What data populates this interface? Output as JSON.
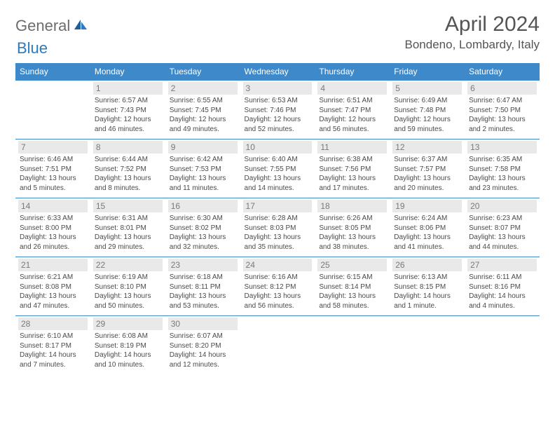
{
  "brand": {
    "part1": "General",
    "part2": "Blue"
  },
  "title": "April 2024",
  "location": "Bondeno, Lombardy, Italy",
  "colors": {
    "header_bg": "#3d89c9",
    "header_fg": "#ffffff",
    "daynum_bg": "#e9e9e9",
    "daynum_fg": "#7a7a7a",
    "border": "#3d89c9",
    "text": "#4a4a4a",
    "title": "#555555",
    "logo_gray": "#6d6d6d",
    "logo_blue": "#2a7bbf"
  },
  "day_headers": [
    "Sunday",
    "Monday",
    "Tuesday",
    "Wednesday",
    "Thursday",
    "Friday",
    "Saturday"
  ],
  "weeks": [
    [
      null,
      {
        "n": "1",
        "sr": "Sunrise: 6:57 AM",
        "ss": "Sunset: 7:43 PM",
        "dl": "Daylight: 12 hours and 46 minutes."
      },
      {
        "n": "2",
        "sr": "Sunrise: 6:55 AM",
        "ss": "Sunset: 7:45 PM",
        "dl": "Daylight: 12 hours and 49 minutes."
      },
      {
        "n": "3",
        "sr": "Sunrise: 6:53 AM",
        "ss": "Sunset: 7:46 PM",
        "dl": "Daylight: 12 hours and 52 minutes."
      },
      {
        "n": "4",
        "sr": "Sunrise: 6:51 AM",
        "ss": "Sunset: 7:47 PM",
        "dl": "Daylight: 12 hours and 56 minutes."
      },
      {
        "n": "5",
        "sr": "Sunrise: 6:49 AM",
        "ss": "Sunset: 7:48 PM",
        "dl": "Daylight: 12 hours and 59 minutes."
      },
      {
        "n": "6",
        "sr": "Sunrise: 6:47 AM",
        "ss": "Sunset: 7:50 PM",
        "dl": "Daylight: 13 hours and 2 minutes."
      }
    ],
    [
      {
        "n": "7",
        "sr": "Sunrise: 6:46 AM",
        "ss": "Sunset: 7:51 PM",
        "dl": "Daylight: 13 hours and 5 minutes."
      },
      {
        "n": "8",
        "sr": "Sunrise: 6:44 AM",
        "ss": "Sunset: 7:52 PM",
        "dl": "Daylight: 13 hours and 8 minutes."
      },
      {
        "n": "9",
        "sr": "Sunrise: 6:42 AM",
        "ss": "Sunset: 7:53 PM",
        "dl": "Daylight: 13 hours and 11 minutes."
      },
      {
        "n": "10",
        "sr": "Sunrise: 6:40 AM",
        "ss": "Sunset: 7:55 PM",
        "dl": "Daylight: 13 hours and 14 minutes."
      },
      {
        "n": "11",
        "sr": "Sunrise: 6:38 AM",
        "ss": "Sunset: 7:56 PM",
        "dl": "Daylight: 13 hours and 17 minutes."
      },
      {
        "n": "12",
        "sr": "Sunrise: 6:37 AM",
        "ss": "Sunset: 7:57 PM",
        "dl": "Daylight: 13 hours and 20 minutes."
      },
      {
        "n": "13",
        "sr": "Sunrise: 6:35 AM",
        "ss": "Sunset: 7:58 PM",
        "dl": "Daylight: 13 hours and 23 minutes."
      }
    ],
    [
      {
        "n": "14",
        "sr": "Sunrise: 6:33 AM",
        "ss": "Sunset: 8:00 PM",
        "dl": "Daylight: 13 hours and 26 minutes."
      },
      {
        "n": "15",
        "sr": "Sunrise: 6:31 AM",
        "ss": "Sunset: 8:01 PM",
        "dl": "Daylight: 13 hours and 29 minutes."
      },
      {
        "n": "16",
        "sr": "Sunrise: 6:30 AM",
        "ss": "Sunset: 8:02 PM",
        "dl": "Daylight: 13 hours and 32 minutes."
      },
      {
        "n": "17",
        "sr": "Sunrise: 6:28 AM",
        "ss": "Sunset: 8:03 PM",
        "dl": "Daylight: 13 hours and 35 minutes."
      },
      {
        "n": "18",
        "sr": "Sunrise: 6:26 AM",
        "ss": "Sunset: 8:05 PM",
        "dl": "Daylight: 13 hours and 38 minutes."
      },
      {
        "n": "19",
        "sr": "Sunrise: 6:24 AM",
        "ss": "Sunset: 8:06 PM",
        "dl": "Daylight: 13 hours and 41 minutes."
      },
      {
        "n": "20",
        "sr": "Sunrise: 6:23 AM",
        "ss": "Sunset: 8:07 PM",
        "dl": "Daylight: 13 hours and 44 minutes."
      }
    ],
    [
      {
        "n": "21",
        "sr": "Sunrise: 6:21 AM",
        "ss": "Sunset: 8:08 PM",
        "dl": "Daylight: 13 hours and 47 minutes."
      },
      {
        "n": "22",
        "sr": "Sunrise: 6:19 AM",
        "ss": "Sunset: 8:10 PM",
        "dl": "Daylight: 13 hours and 50 minutes."
      },
      {
        "n": "23",
        "sr": "Sunrise: 6:18 AM",
        "ss": "Sunset: 8:11 PM",
        "dl": "Daylight: 13 hours and 53 minutes."
      },
      {
        "n": "24",
        "sr": "Sunrise: 6:16 AM",
        "ss": "Sunset: 8:12 PM",
        "dl": "Daylight: 13 hours and 56 minutes."
      },
      {
        "n": "25",
        "sr": "Sunrise: 6:15 AM",
        "ss": "Sunset: 8:14 PM",
        "dl": "Daylight: 13 hours and 58 minutes."
      },
      {
        "n": "26",
        "sr": "Sunrise: 6:13 AM",
        "ss": "Sunset: 8:15 PM",
        "dl": "Daylight: 14 hours and 1 minute."
      },
      {
        "n": "27",
        "sr": "Sunrise: 6:11 AM",
        "ss": "Sunset: 8:16 PM",
        "dl": "Daylight: 14 hours and 4 minutes."
      }
    ],
    [
      {
        "n": "28",
        "sr": "Sunrise: 6:10 AM",
        "ss": "Sunset: 8:17 PM",
        "dl": "Daylight: 14 hours and 7 minutes."
      },
      {
        "n": "29",
        "sr": "Sunrise: 6:08 AM",
        "ss": "Sunset: 8:19 PM",
        "dl": "Daylight: 14 hours and 10 minutes."
      },
      {
        "n": "30",
        "sr": "Sunrise: 6:07 AM",
        "ss": "Sunset: 8:20 PM",
        "dl": "Daylight: 14 hours and 12 minutes."
      },
      null,
      null,
      null,
      null
    ]
  ]
}
